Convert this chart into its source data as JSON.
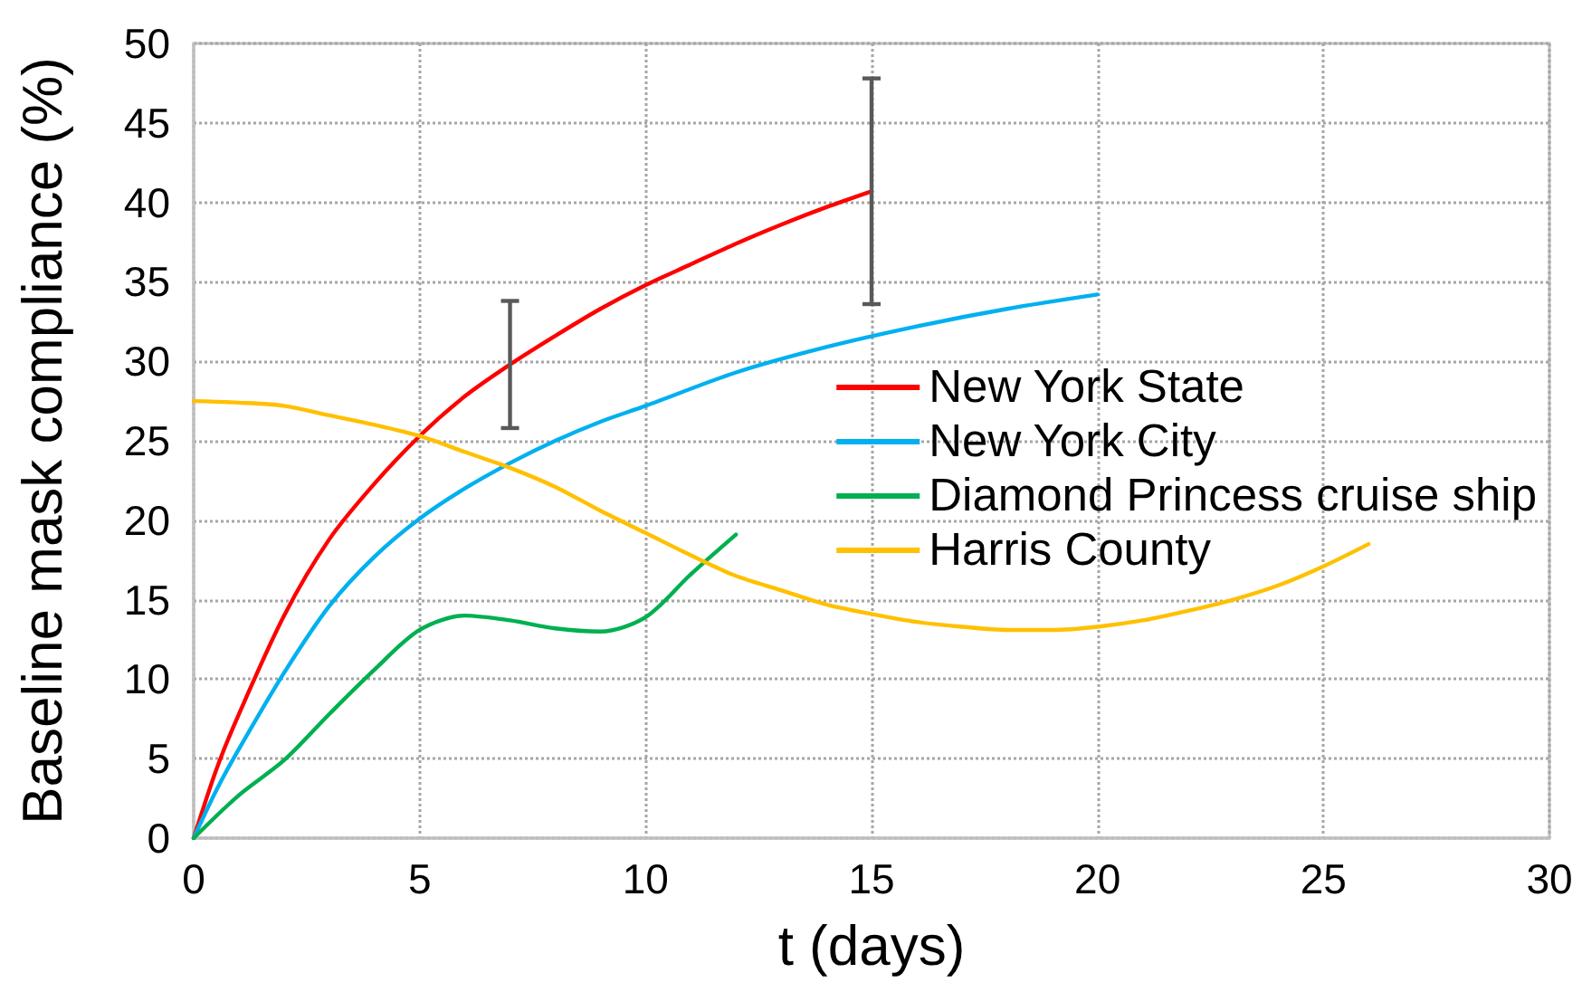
{
  "chart_data": {
    "type": "line",
    "xlabel": "t (days)",
    "ylabel": "Baseline mask compliance (%)",
    "xlim": [
      0,
      30
    ],
    "ylim": [
      0,
      50
    ],
    "xticks": [
      0,
      5,
      10,
      15,
      20,
      25,
      30
    ],
    "yticks": [
      0,
      5,
      10,
      15,
      20,
      25,
      30,
      35,
      40,
      45,
      50
    ],
    "grid": true,
    "legend": "right",
    "marker": "none",
    "line_style": "solid",
    "series": [
      {
        "name": "New York State",
        "color": "#ff0000",
        "x": [
          0,
          0.5,
          1,
          2,
          3,
          4,
          5,
          6,
          7,
          8,
          9,
          10,
          11,
          12,
          13,
          14,
          15
        ],
        "values": [
          0,
          4.3,
          7.8,
          14,
          18.8,
          22.3,
          25.3,
          27.8,
          29.8,
          31.6,
          33.3,
          34.8,
          36.1,
          37.4,
          38.6,
          39.7,
          40.7
        ],
        "errors": [
          null,
          null,
          null,
          null,
          null,
          null,
          null,
          null,
          [
            25.8,
            33.8
          ],
          null,
          null,
          null,
          null,
          null,
          null,
          null,
          [
            33.6,
            47.8
          ]
        ]
      },
      {
        "name": "New York City",
        "color": "#00b0f0",
        "x": [
          0,
          0.5,
          1,
          2,
          3,
          4,
          5,
          6,
          7,
          8,
          9,
          10,
          12,
          14,
          16,
          18,
          20
        ],
        "values": [
          0,
          3,
          5.6,
          10.4,
          14.6,
          17.7,
          20.1,
          22,
          23.6,
          25,
          26.2,
          27.2,
          29.3,
          30.9,
          32.2,
          33.3,
          34.2
        ]
      },
      {
        "name": "Diamond Princess cruise ship",
        "color": "#00b050",
        "x": [
          0,
          1,
          2,
          3,
          4,
          5,
          6,
          7,
          8,
          9,
          10,
          11,
          12
        ],
        "values": [
          0,
          2.7,
          4.9,
          7.8,
          10.6,
          13.1,
          14,
          13.7,
          13.2,
          13,
          13.9,
          16.6,
          19.1
        ]
      },
      {
        "name": "Harris County",
        "color": "#ffc000",
        "x": [
          0,
          1,
          2,
          3,
          4,
          5,
          6,
          7,
          8,
          9,
          10,
          11,
          12,
          13,
          14,
          15,
          16,
          17,
          18,
          19,
          20,
          21,
          22,
          23,
          24,
          25,
          26
        ],
        "values": [
          27.5,
          27.4,
          27.2,
          26.6,
          26,
          25.3,
          24.3,
          23.3,
          22.1,
          20.6,
          19.2,
          17.8,
          16.5,
          15.6,
          14.7,
          14.1,
          13.6,
          13.3,
          13.1,
          13.1,
          13.3,
          13.7,
          14.3,
          15,
          15.9,
          17.1,
          18.5
        ]
      }
    ]
  }
}
